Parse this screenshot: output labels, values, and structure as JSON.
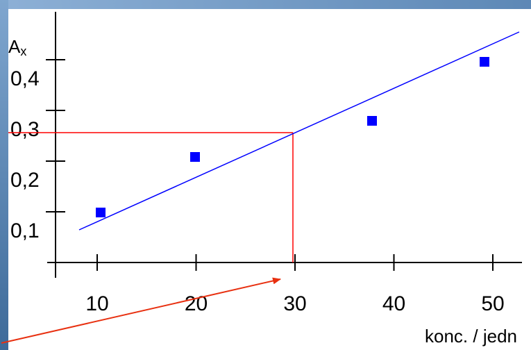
{
  "chart_data": {
    "type": "scatter",
    "title": "",
    "ylabel": "A",
    "ylabel_sub": "x",
    "xlabel": "konc. / jedn",
    "xlim": [
      0,
      55
    ],
    "ylim": [
      0,
      0.45
    ],
    "x_ticks": [
      10,
      20,
      30,
      40,
      50
    ],
    "x_tick_labels": [
      "10",
      "20",
      "30",
      "40",
      "50"
    ],
    "y_ticks": [
      0.1,
      0.2,
      0.3,
      0.4
    ],
    "y_tick_labels": [
      "0,1",
      "0,2",
      "0,3",
      "0,4"
    ],
    "grid": false,
    "series": [
      {
        "type": "scatter",
        "x": [
          10.5,
          20,
          39,
          50
        ],
        "y": [
          0.1,
          0.2,
          0.28,
          0.4
        ],
        "color": "#0000ff",
        "marker": "square"
      },
      {
        "type": "line",
        "x": [
          8,
          54
        ],
        "y": [
          0.06,
          0.43
        ],
        "color": "#0000ff"
      }
    ],
    "annotations": [
      {
        "type": "reference-lines",
        "x": 30,
        "y": 0.26,
        "color": "#ff0000"
      },
      {
        "type": "arrow",
        "color": "#e83010",
        "target_x": 30
      }
    ],
    "frame_colors": {
      "left": "#5a84b0",
      "top": "#6f97c3"
    }
  }
}
